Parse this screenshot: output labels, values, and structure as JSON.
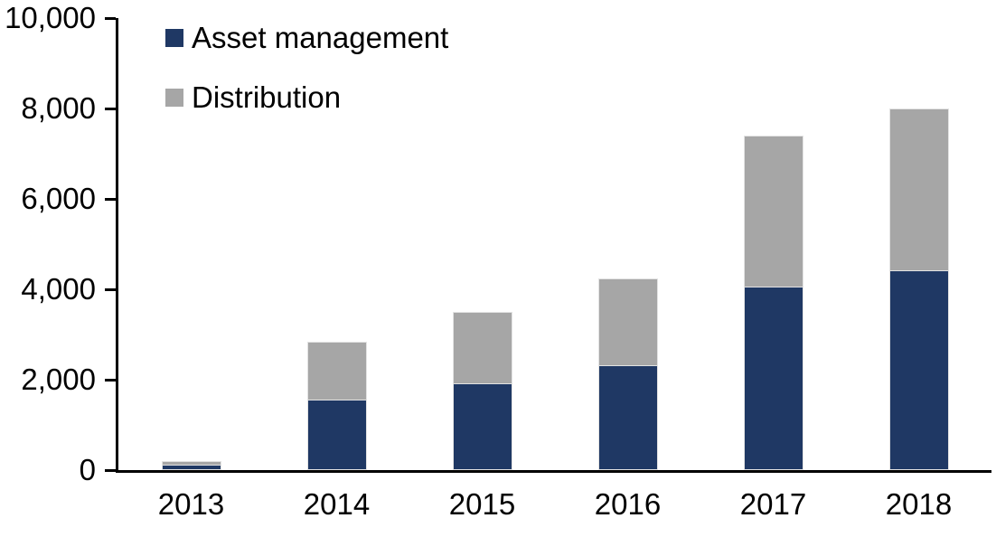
{
  "chart_data": {
    "type": "bar",
    "subtype": "stacked-vertical",
    "title": "",
    "xlabel": "",
    "ylabel": "",
    "categories": [
      "2013",
      "2014",
      "2015",
      "2016",
      "2017",
      "2018"
    ],
    "series": [
      {
        "name": "Asset management",
        "color": "#1f3864",
        "values": [
          110,
          1550,
          1900,
          2300,
          4050,
          4400
        ]
      },
      {
        "name": "Distribution",
        "color": "#a6a6a6",
        "values": [
          90,
          1300,
          1600,
          1950,
          3350,
          3600
        ]
      }
    ],
    "totals": [
      200,
      2850,
      3500,
      4250,
      7400,
      8000
    ],
    "ylim": [
      0,
      10000
    ],
    "yticks": [
      {
        "value": 0,
        "label": "0"
      },
      {
        "value": 2000,
        "label": "2,000"
      },
      {
        "value": 4000,
        "label": "4,000"
      },
      {
        "value": 6000,
        "label": "6,000"
      },
      {
        "value": 8000,
        "label": "8,000"
      },
      {
        "value": 10000,
        "label": "10,000"
      }
    ],
    "grid": false,
    "legend_position": "top-left"
  },
  "colors": {
    "axis": "#000000",
    "background": "#ffffff",
    "bar_outline": "#e3e3e3",
    "text": "#000000"
  }
}
